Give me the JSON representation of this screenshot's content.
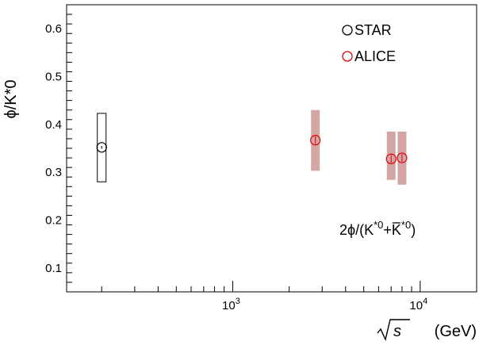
{
  "chart_data": {
    "type": "scatter",
    "title": "",
    "xlabel": "√s (GeV)",
    "xlabel_unit": "(GeV)",
    "ylabel": "ϕ/K*0",
    "xscale": "log",
    "xlim": [
      130,
      20000
    ],
    "ylim": [
      0.05,
      0.65
    ],
    "y_ticks": [
      0.1,
      0.2,
      0.3,
      0.4,
      0.5,
      0.6
    ],
    "y_tick_labels": [
      "0.1",
      "0.2",
      "0.3",
      "0.4",
      "0.5",
      "0.6"
    ],
    "x_major_ticks": [
      1000,
      10000
    ],
    "x_major_tick_labels": [
      {
        "base": "10",
        "exp": "3"
      },
      {
        "base": "10",
        "exp": "4"
      }
    ],
    "grid": false,
    "legend_position": "top-right",
    "annotation": {
      "prefix": "2ϕ/(K",
      "sup1": "*0",
      "plus": "+",
      "kbar": "K",
      "sup2": "*0",
      "suffix": ")"
    },
    "series": [
      {
        "name": "STAR",
        "color": "#000000",
        "marker": "open-circle",
        "box_fill": "none",
        "points": [
          {
            "x": 200,
            "y": 0.352,
            "stat": 0.003,
            "sys_low": 0.28,
            "sys_high": 0.423
          }
        ]
      },
      {
        "name": "ALICE",
        "color": "#dd0000",
        "marker": "open-circle",
        "box_fill": "#d4a5a5",
        "points": [
          {
            "x": 2760,
            "y": 0.367,
            "stat": 0.008,
            "sys_low": 0.303,
            "sys_high": 0.43
          },
          {
            "x": 7000,
            "y": 0.328,
            "stat": 0.008,
            "sys_low": 0.284,
            "sys_high": 0.385
          },
          {
            "x": 8000,
            "y": 0.33,
            "stat": 0.008,
            "sys_low": 0.274,
            "sys_high": 0.385
          }
        ]
      }
    ]
  }
}
